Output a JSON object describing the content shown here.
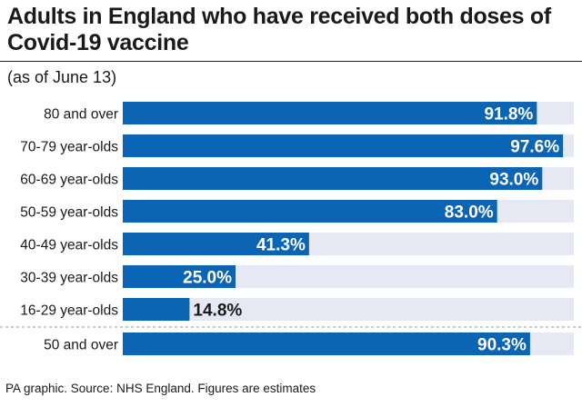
{
  "title": "Adults in England who have received both doses of Covid-19 vaccine",
  "subtitle": "(as of June 13)",
  "source": "PA graphic. Source: NHS England. Figures are estimates",
  "colors": {
    "bar": "#0b64b4",
    "track": "#e6e8f3",
    "text": "#1a1a1a",
    "label_on_bar": "#ffffff",
    "separator": "#999999"
  },
  "chart_data": {
    "type": "bar",
    "orientation": "horizontal",
    "categories": [
      "80 and over",
      "70-79 year-olds",
      "60-69 year-olds",
      "50-59 year-olds",
      "40-49 year-olds",
      "30-39 year-olds",
      "16-29 year-olds",
      "50 and over"
    ],
    "values": [
      91.8,
      97.6,
      93.0,
      83.0,
      41.3,
      25.0,
      14.8,
      90.3
    ],
    "value_labels": [
      "91.8%",
      "97.6%",
      "93.0%",
      "83.0%",
      "41.3%",
      "25.0%",
      "14.8%",
      "90.3%"
    ],
    "xlim": [
      0,
      100
    ],
    "title": "Adults in England who have received both doses of Covid-19 vaccine",
    "xlabel": "",
    "ylabel": "",
    "grid": false,
    "legend": "none"
  }
}
